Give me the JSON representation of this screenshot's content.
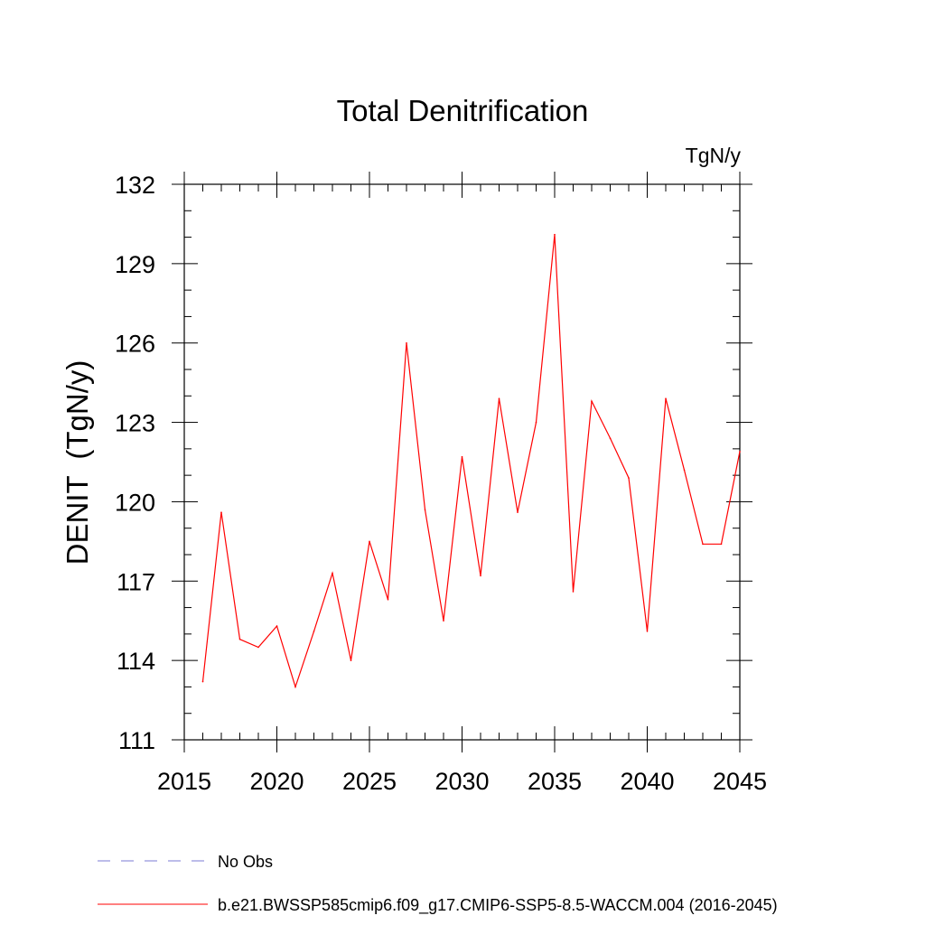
{
  "chart_data": {
    "type": "line",
    "title": "Total Denitrification",
    "units": "TgN/y",
    "ylabel": "DENIT  (TgN/y)",
    "xlabel": "",
    "xlim": [
      2015,
      2045
    ],
    "ylim": [
      111,
      132
    ],
    "xticks": [
      2015,
      2020,
      2025,
      2030,
      2035,
      2040,
      2045
    ],
    "yticks": [
      111,
      114,
      117,
      120,
      123,
      126,
      129,
      132
    ],
    "grid": false,
    "series": [
      {
        "name": "b.e21.BWSSP585cmip6.f09_g17.CMIP6-SSP5-8.5-WACCM.004 (2016-2045)",
        "color": "#ff0000",
        "style": "solid",
        "x": [
          2016,
          2017,
          2018,
          2019,
          2020,
          2021,
          2022,
          2023,
          2024,
          2025,
          2026,
          2027,
          2028,
          2029,
          2030,
          2031,
          2032,
          2033,
          2034,
          2035,
          2036,
          2037,
          2038,
          2039,
          2040,
          2041,
          2042,
          2043,
          2044,
          2045
        ],
        "y": [
          113.2,
          119.6,
          114.8,
          114.5,
          115.3,
          113.0,
          115.1,
          117.3,
          114.0,
          118.5,
          116.3,
          126.0,
          119.7,
          115.5,
          121.7,
          117.2,
          123.9,
          119.6,
          123.0,
          130.1,
          116.6,
          123.8,
          122.4,
          120.9,
          115.1,
          123.9,
          121.2,
          118.4,
          118.4,
          121.9
        ]
      }
    ],
    "legend": [
      {
        "label": "No Obs",
        "color": "#7b7bd6",
        "style": "dashed"
      },
      {
        "label": "b.e21.BWSSP585cmip6.f09_g17.CMIP6-SSP5-8.5-WACCM.004 (2016-2045)",
        "color": "#ff0000",
        "style": "solid"
      }
    ],
    "legend_position": "bottom-left"
  }
}
